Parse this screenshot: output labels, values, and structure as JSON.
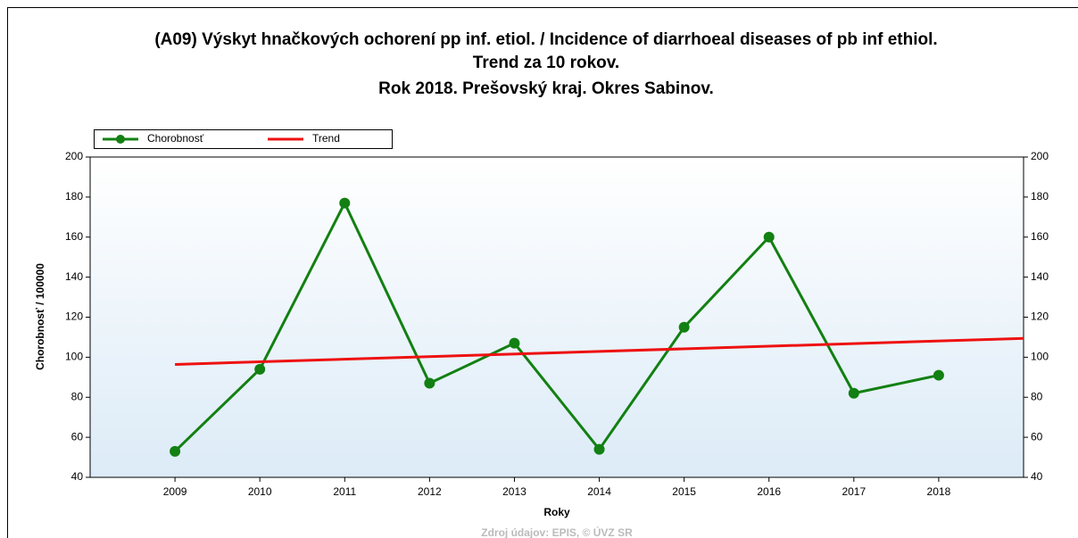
{
  "chart_data": {
    "type": "line",
    "title": "(A09) Výskyt hnačkových ochorení pp inf. etiol. / Incidence of diarrhoeal diseases of pb inf ethiol.",
    "subtitle": [
      "Trend za 10 rokov.",
      "Rok 2018. Prešovský kraj. Okres Sabinov."
    ],
    "xlabel": "Roky",
    "ylabel": "Chorobnosť / 100000",
    "source": "Zdroj údajov: EPIS, © ÚVZ SR",
    "xlim": [
      2008,
      2019
    ],
    "xticks": [
      2009,
      2010,
      2011,
      2012,
      2013,
      2014,
      2015,
      2016,
      2017,
      2018
    ],
    "ylim": [
      40,
      200
    ],
    "yticks": [
      40,
      60,
      80,
      100,
      120,
      140,
      160,
      180,
      200
    ],
    "y2lim": [
      40,
      200
    ],
    "y2ticks": [
      40,
      60,
      80,
      100,
      120,
      140,
      160,
      180,
      200
    ],
    "legend": "top-left",
    "series": [
      {
        "name": "Chorobnosť",
        "color": "#128012",
        "markers": true,
        "x": [
          2009,
          2010,
          2011,
          2012,
          2013,
          2014,
          2015,
          2016,
          2017,
          2018
        ],
        "values": [
          53,
          94,
          177,
          87,
          107,
          54,
          115,
          160,
          82,
          91
        ]
      },
      {
        "name": "Trend",
        "color": "#ee1111",
        "markers": false,
        "x": [
          2009,
          2019
        ],
        "values": [
          96.4,
          109.4
        ]
      }
    ]
  }
}
